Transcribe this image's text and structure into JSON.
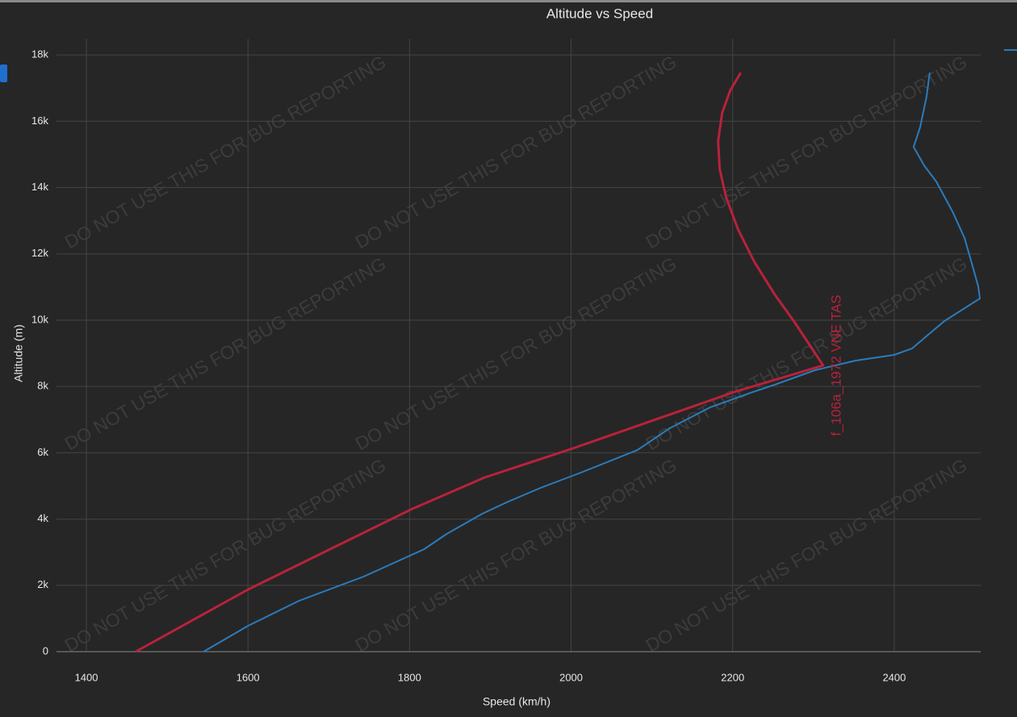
{
  "chart_data": {
    "type": "line",
    "title": "Altitude vs Speed",
    "x_label": "Speed (km/h)",
    "y_label": "Altitude (m)",
    "watermark": "DO NOT USE THIS FOR BUG REPORTING",
    "annotation": "f_106a_1972 VNE TAS",
    "xlim": [
      1363,
      2507
    ],
    "ylim": [
      0,
      18490
    ],
    "xticks": [
      1400,
      1600,
      1800,
      2000,
      2200,
      2400
    ],
    "yticks": [
      0,
      {
        "value": 2000,
        "label": "2k"
      },
      {
        "value": 4000,
        "label": "4k"
      },
      {
        "value": 6000,
        "label": "6k"
      },
      {
        "value": 8000,
        "label": "8k"
      },
      {
        "value": 10000,
        "label": "10k"
      },
      {
        "value": 12000,
        "label": "12k"
      },
      {
        "value": 14000,
        "label": "14k"
      },
      {
        "value": 16000,
        "label": "16k"
      },
      {
        "value": 18000,
        "label": "18k"
      }
    ],
    "grid": true,
    "series": [
      {
        "color": "#2c7bbb",
        "x": [
          1545,
          1600,
          1663,
          1743,
          1818,
          1846,
          1890,
          1922,
          1962,
          2012,
          2082,
          2122,
          2172,
          2222,
          2252,
          2302,
          2352,
          2400,
          2422,
          2462,
          2506,
          2504,
          2497,
          2487,
          2472,
          2452,
          2437,
          2424,
          2432,
          2440,
          2444
        ],
        "values": [
          0,
          778,
          1532,
          2262,
          3089,
          3551,
          4160,
          4524,
          4938,
          5400,
          6081,
          6738,
          7370,
          7808,
          8052,
          8490,
          8781,
          8952,
          9146,
          9973,
          10654,
          11019,
          11627,
          12479,
          13281,
          14181,
          14668,
          15228,
          15811,
          16736,
          17465
        ]
      },
      {
        "color": "#b8223b",
        "x": [
          1461,
          1600,
          1803,
          1893,
          2002,
          2102,
          2202,
          2312,
          2277,
          2252,
          2227,
          2207,
          2192,
          2184,
          2182,
          2187,
          2197,
          2210
        ],
        "values": [
          0,
          1873,
          4305,
          5254,
          6130,
          6981,
          7833,
          8635,
          9925,
          10776,
          11749,
          12722,
          13695,
          14546,
          15398,
          16249,
          16930,
          17465
        ]
      }
    ]
  }
}
